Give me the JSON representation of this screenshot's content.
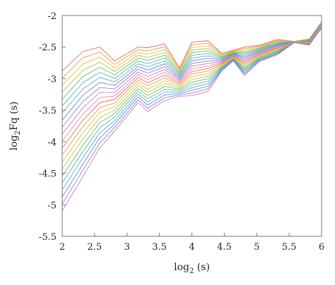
{
  "chart_data": {
    "type": "line",
    "xlabel": "log2 (s)",
    "ylabel": "log2Fq (s)",
    "xlim": [
      2,
      6
    ],
    "ylim": [
      -5.5,
      -2
    ],
    "x_ticks": [
      2,
      2.5,
      3,
      3.5,
      4,
      4.5,
      5,
      5.5,
      6
    ],
    "y_ticks": [
      -2,
      -2.5,
      -3,
      -3.5,
      -4,
      -4.5,
      -5,
      -5.5
    ],
    "x_tick_labels": [
      "2",
      "2.5",
      "3",
      "3.5",
      "4",
      "4.5",
      "5",
      "5.5",
      "6"
    ],
    "y_tick_labels": [
      "-2",
      "-2.5",
      "-3",
      "-3.5",
      "-4",
      "-4.5",
      "-5",
      "-5.5"
    ],
    "grid": false,
    "legend": "none",
    "series_count": 21,
    "colors": [
      "#e06a5c",
      "#e8a040",
      "#d9c24a",
      "#a9c95a",
      "#68b86f",
      "#4fb8a8",
      "#58a9d6",
      "#6f86d4",
      "#9a7ccc",
      "#c77fb9",
      "#e58a9a"
    ],
    "x": [
      2,
      2.32,
      2.58,
      2.81,
      3.17,
      3.32,
      3.58,
      3.81,
      4,
      4.25,
      4.46,
      4.64,
      4.81,
      5.04,
      5.32,
      5.58,
      5.81,
      6
    ],
    "top_series": [
      -2.88,
      -2.57,
      -2.5,
      -2.72,
      -2.5,
      -2.51,
      -2.45,
      -2.83,
      -2.42,
      -2.4,
      -2.6,
      -2.55,
      -2.5,
      -2.47,
      -2.38,
      -2.41,
      -2.37,
      -2.1
    ],
    "bottom_series": [
      -5.1,
      -4.55,
      -4.1,
      -3.83,
      -3.38,
      -3.52,
      -3.35,
      -3.28,
      -3.27,
      -3.2,
      -2.88,
      -2.72,
      -2.95,
      -2.73,
      -2.62,
      -2.43,
      -2.47,
      -2.2
    ]
  }
}
